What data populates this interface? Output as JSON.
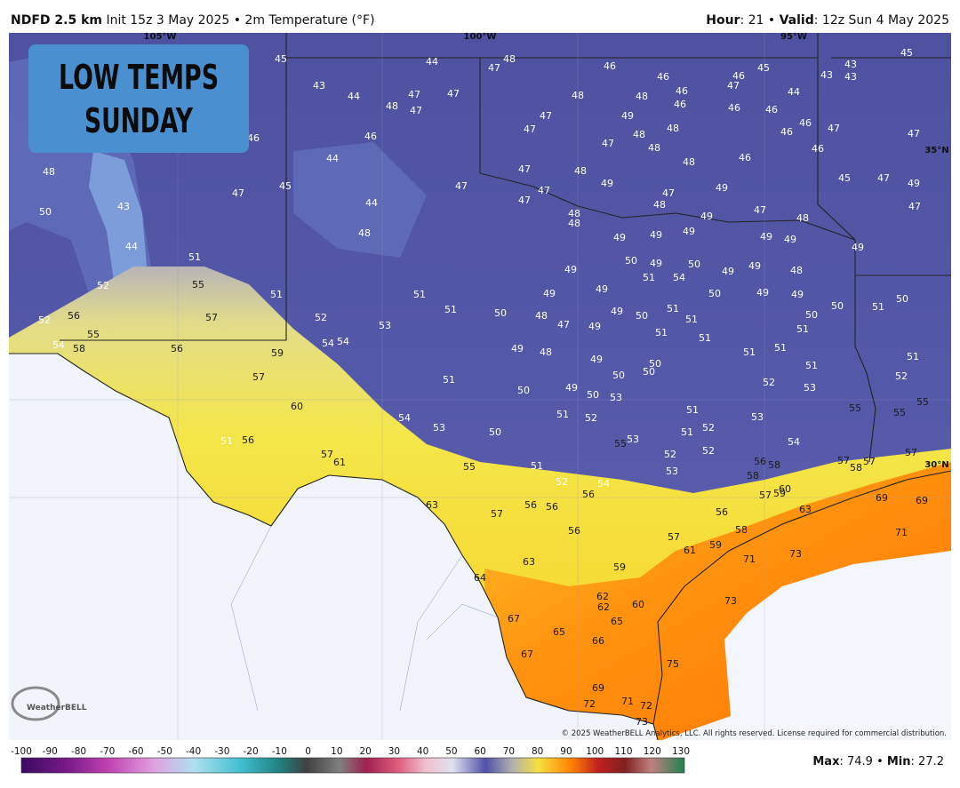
{
  "header": {
    "model": "NDFD 2.5 km",
    "subtitle": "Init 15z 3 May 2025 • 2m Temperature (°F)",
    "hour_label": "Hour",
    "hour_text": ": 21 • ",
    "valid_label": "Valid",
    "valid_text": ": 12z Sun 4 May 2025"
  },
  "overlay_title": [
    "LOW TEMPS",
    "SUNDAY"
  ],
  "longitudes": [
    "105°W",
    "100°W",
    "95°W"
  ],
  "latitudes": [
    "35°N",
    "30°N"
  ],
  "stations": [
    45,
    44,
    47,
    48,
    46,
    46,
    46,
    45,
    44,
    43,
    43,
    43,
    45,
    43,
    44,
    47,
    48,
    47,
    47,
    48,
    48,
    46,
    46,
    47,
    46,
    46,
    46,
    47,
    47,
    46,
    46,
    44,
    47,
    49,
    48,
    48,
    48,
    47,
    47,
    46,
    46,
    46,
    47,
    48,
    50,
    43,
    47,
    45,
    44,
    47,
    48,
    49,
    47,
    47,
    47,
    48,
    49,
    48,
    47,
    48,
    45,
    47,
    49,
    47,
    44,
    48,
    48,
    48,
    49,
    49,
    49,
    49,
    49,
    49,
    49,
    51,
    50,
    49,
    51,
    50,
    54,
    49,
    49,
    48,
    49,
    52,
    55,
    51,
    51,
    49,
    49,
    50,
    49,
    49,
    50,
    51,
    50,
    52,
    56,
    57,
    52,
    53,
    51,
    50,
    48,
    47,
    49,
    50,
    51,
    51,
    49,
    50,
    51,
    51,
    51,
    54,
    58,
    55,
    56,
    59,
    54,
    54,
    49,
    48,
    49,
    50,
    50,
    51,
    51,
    51,
    51,
    57,
    51,
    50,
    49,
    50,
    53,
    50,
    52,
    53,
    52,
    60,
    54,
    53,
    51,
    52,
    51,
    53,
    55,
    55,
    55,
    51,
    56,
    50,
    55,
    53,
    51,
    52,
    54,
    57,
    61,
    55,
    51,
    52,
    52,
    53,
    56,
    58,
    57,
    58,
    57,
    57,
    52,
    54,
    56,
    58,
    57,
    59,
    60,
    63,
    57,
    56,
    56,
    56,
    63,
    69,
    69,
    56,
    57,
    58,
    59,
    61,
    71,
    71,
    73,
    63,
    59,
    64,
    62,
    62,
    60,
    73,
    67,
    65,
    65,
    66,
    75,
    67,
    69,
    72,
    71,
    72,
    73
  ],
  "logo": "WeatherBELL",
  "copyright": "© 2025 WeatherBELL Analytics, LLC. All rights reserved. License required for commercial distribution.",
  "scale": {
    "ticks": [
      -100,
      -90,
      -80,
      -70,
      -60,
      -50,
      -40,
      -30,
      -20,
      -10,
      0,
      10,
      20,
      30,
      40,
      50,
      60,
      70,
      80,
      90,
      100,
      110,
      120,
      130
    ]
  },
  "stats": {
    "max_label": "Max",
    "max_text": ": 74.9 • ",
    "min_label": "Min",
    "min_text": ": 27.2"
  }
}
